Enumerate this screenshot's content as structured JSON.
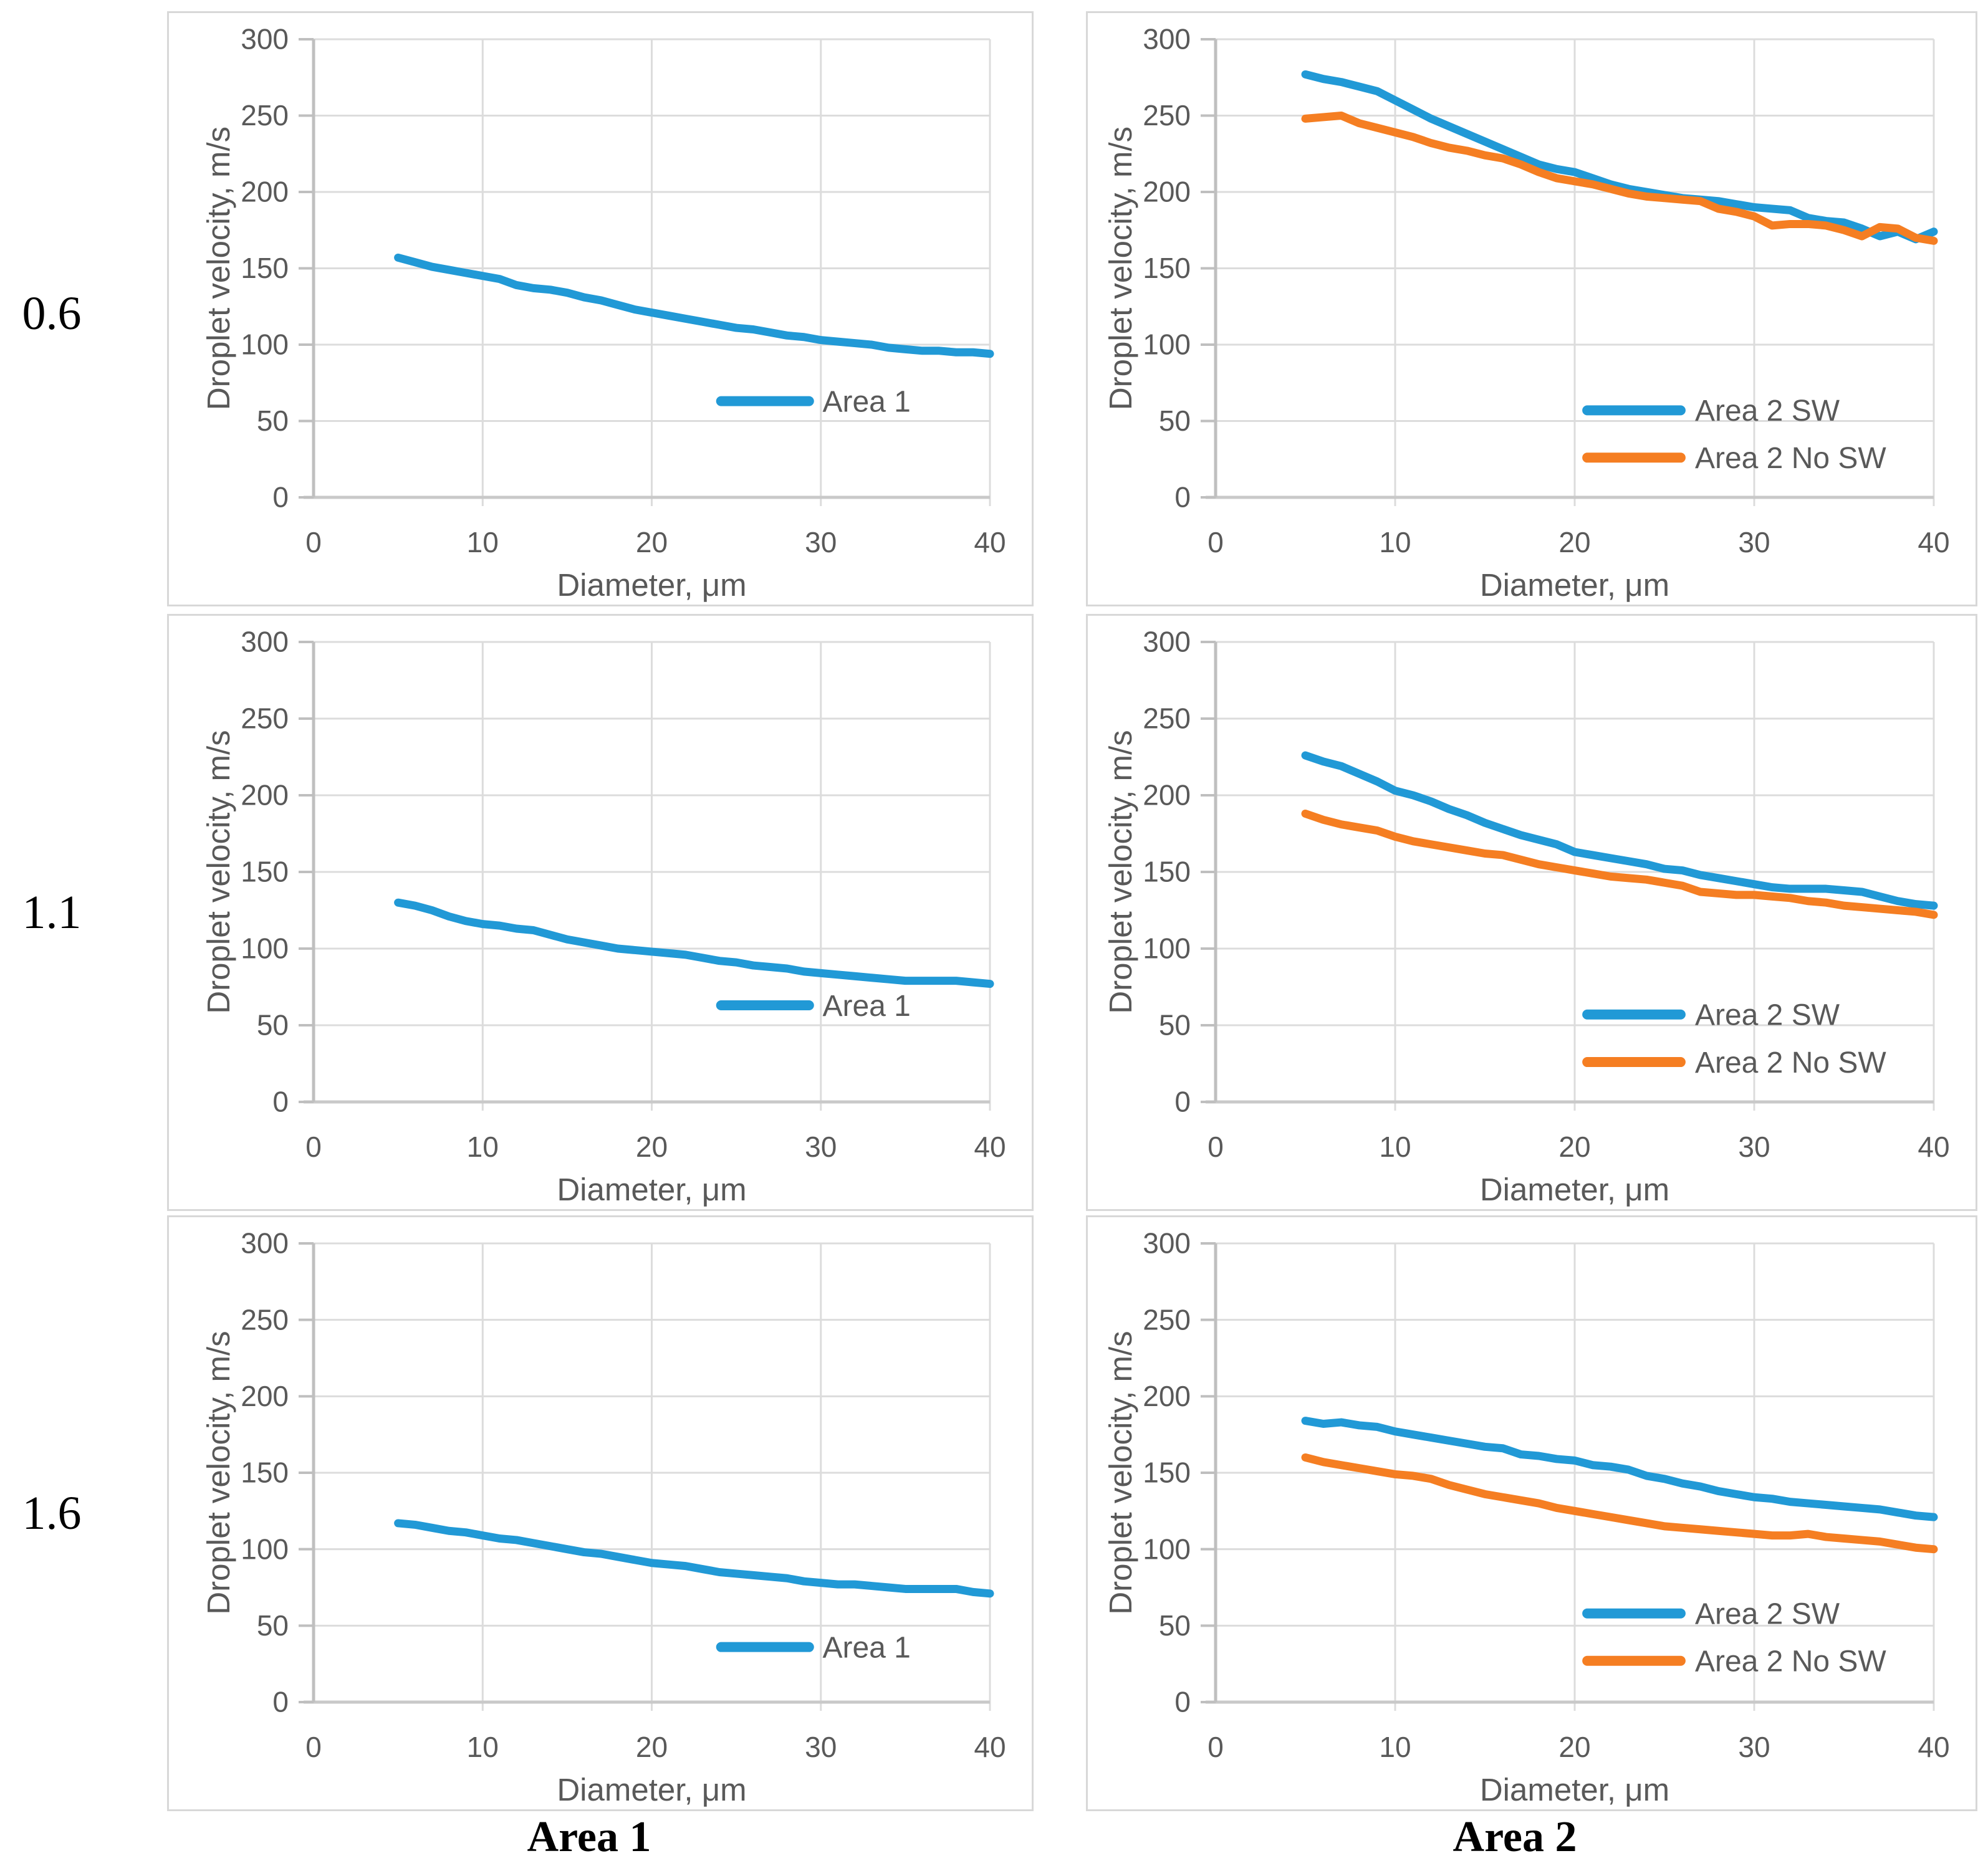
{
  "figure": {
    "row_labels": [
      {
        "label": "0.6"
      },
      {
        "label": "1.1"
      },
      {
        "label": "1.6"
      }
    ],
    "column_captions": [
      {
        "label": "Area 1"
      },
      {
        "label": "Area 2"
      }
    ]
  },
  "colors": {
    "blue": "#2199d6",
    "orange": "#f57e22",
    "grid": "#dcdcdc",
    "axis": "#bfbfbf",
    "axis_bottom": "#c9c9c9",
    "text": "#595959",
    "panel_border": "#d8d8d8"
  },
  "chart_data": [
    {
      "id": "r1-area1",
      "row": 0,
      "col": 0,
      "type": "line",
      "xlabel": "Diameter, μm",
      "ylabel": "Droplet velocity, m/s",
      "xlim": [
        0,
        40
      ],
      "ylim": [
        0,
        300
      ],
      "xticks": [
        0,
        10,
        20,
        30,
        40
      ],
      "yticks": [
        0,
        50,
        100,
        150,
        200,
        250,
        300
      ],
      "grid": true,
      "legend": {
        "position": "inside-lower-right",
        "entries": [
          {
            "label": "Area 1",
            "color": "blue",
            "x": 24.1,
            "y": 63
          }
        ]
      },
      "series": [
        {
          "name": "Area 1",
          "color": "blue",
          "x": [
            5,
            6,
            7,
            8,
            9,
            10,
            11,
            12,
            13,
            14,
            15,
            16,
            17,
            18,
            19,
            20,
            21,
            22,
            23,
            24,
            25,
            26,
            27,
            28,
            29,
            30,
            31,
            32,
            33,
            34,
            35,
            36,
            37,
            38,
            39,
            40
          ],
          "y": [
            157,
            154,
            151,
            149,
            147,
            145,
            143,
            139,
            137,
            136,
            134,
            131,
            129,
            126,
            123,
            121,
            119,
            117,
            115,
            113,
            111,
            110,
            108,
            106,
            105,
            103,
            102,
            101,
            100,
            98,
            97,
            96,
            96,
            95,
            95,
            94
          ]
        }
      ]
    },
    {
      "id": "r1-area2",
      "row": 0,
      "col": 1,
      "type": "line",
      "xlabel": "Diameter, μm",
      "ylabel": "Droplet velocity, m/s",
      "xlim": [
        0,
        40
      ],
      "ylim": [
        0,
        300
      ],
      "xticks": [
        0,
        10,
        20,
        30,
        40
      ],
      "yticks": [
        0,
        50,
        100,
        150,
        200,
        250,
        300
      ],
      "grid": true,
      "legend": {
        "position": "inside-lower-right",
        "entries": [
          {
            "label": "Area 2 SW",
            "color": "blue",
            "x": 20.7,
            "y": 57
          },
          {
            "label": "Area 2 No SW",
            "color": "orange",
            "x": 20.7,
            "y": 26
          }
        ]
      },
      "series": [
        {
          "name": "Area 2 SW",
          "color": "blue",
          "x": [
            5,
            6,
            7,
            8,
            9,
            10,
            11,
            12,
            13,
            14,
            15,
            16,
            17,
            18,
            19,
            20,
            21,
            22,
            23,
            24,
            25,
            26,
            27,
            28,
            29,
            30,
            31,
            32,
            33,
            34,
            35,
            36,
            37,
            38,
            39,
            40
          ],
          "y": [
            277,
            274,
            272,
            269,
            266,
            260,
            254,
            248,
            243,
            238,
            233,
            228,
            223,
            218,
            215,
            213,
            209,
            205,
            202,
            200,
            198,
            196,
            195,
            194,
            192,
            190,
            189,
            188,
            183,
            181,
            180,
            176,
            171,
            174,
            169,
            174
          ]
        },
        {
          "name": "Area 2 No SW",
          "color": "orange",
          "x": [
            5,
            6,
            7,
            8,
            9,
            10,
            11,
            12,
            13,
            14,
            15,
            16,
            17,
            18,
            19,
            20,
            21,
            22,
            23,
            24,
            25,
            26,
            27,
            28,
            29,
            30,
            31,
            32,
            33,
            34,
            35,
            36,
            37,
            38,
            39,
            40
          ],
          "y": [
            248,
            249,
            250,
            245,
            242,
            239,
            236,
            232,
            229,
            227,
            224,
            222,
            218,
            213,
            209,
            207,
            205,
            202,
            199,
            197,
            196,
            195,
            194,
            189,
            187,
            184,
            178,
            179,
            179,
            178,
            175,
            171,
            177,
            176,
            170,
            168
          ]
        }
      ]
    },
    {
      "id": "r2-area1",
      "row": 1,
      "col": 0,
      "type": "line",
      "xlabel": "Diameter, μm",
      "ylabel": "Droplet velocity, m/s",
      "xlim": [
        0,
        40
      ],
      "ylim": [
        0,
        300
      ],
      "xticks": [
        0,
        10,
        20,
        30,
        40
      ],
      "yticks": [
        0,
        50,
        100,
        150,
        200,
        250,
        300
      ],
      "grid": true,
      "legend": {
        "position": "inside-lower-right",
        "entries": [
          {
            "label": "Area 1",
            "color": "blue",
            "x": 24.1,
            "y": 63
          }
        ]
      },
      "series": [
        {
          "name": "Area 1",
          "color": "blue",
          "x": [
            5,
            6,
            7,
            8,
            9,
            10,
            11,
            12,
            13,
            14,
            15,
            16,
            17,
            18,
            19,
            20,
            21,
            22,
            23,
            24,
            25,
            26,
            27,
            28,
            29,
            30,
            31,
            32,
            33,
            34,
            35,
            36,
            37,
            38,
            39,
            40
          ],
          "y": [
            130,
            128,
            125,
            121,
            118,
            116,
            115,
            113,
            112,
            109,
            106,
            104,
            102,
            100,
            99,
            98,
            97,
            96,
            94,
            92,
            91,
            89,
            88,
            87,
            85,
            84,
            83,
            82,
            81,
            80,
            79,
            79,
            79,
            79,
            78,
            77
          ]
        }
      ]
    },
    {
      "id": "r2-area2",
      "row": 1,
      "col": 1,
      "type": "line",
      "xlabel": "Diameter, μm",
      "ylabel": "Droplet velocity, m/s",
      "xlim": [
        0,
        40
      ],
      "ylim": [
        0,
        300
      ],
      "xticks": [
        0,
        10,
        20,
        30,
        40
      ],
      "yticks": [
        0,
        50,
        100,
        150,
        200,
        250,
        300
      ],
      "grid": true,
      "legend": {
        "position": "inside-lower-right",
        "entries": [
          {
            "label": "Area 2 SW",
            "color": "blue",
            "x": 20.7,
            "y": 57
          },
          {
            "label": "Area 2 No SW",
            "color": "orange",
            "x": 20.7,
            "y": 26
          }
        ]
      },
      "series": [
        {
          "name": "Area 2 SW",
          "color": "blue",
          "x": [
            5,
            6,
            7,
            8,
            9,
            10,
            11,
            12,
            13,
            14,
            15,
            16,
            17,
            18,
            19,
            20,
            21,
            22,
            23,
            24,
            25,
            26,
            27,
            28,
            29,
            30,
            31,
            32,
            33,
            34,
            35,
            36,
            37,
            38,
            39,
            40
          ],
          "y": [
            226,
            222,
            219,
            214,
            209,
            203,
            200,
            196,
            191,
            187,
            182,
            178,
            174,
            171,
            168,
            163,
            161,
            159,
            157,
            155,
            152,
            151,
            148,
            146,
            144,
            142,
            140,
            139,
            139,
            139,
            138,
            137,
            134,
            131,
            129,
            128
          ]
        },
        {
          "name": "Area 2 No SW",
          "color": "orange",
          "x": [
            5,
            6,
            7,
            8,
            9,
            10,
            11,
            12,
            13,
            14,
            15,
            16,
            17,
            18,
            19,
            20,
            21,
            22,
            23,
            24,
            25,
            26,
            27,
            28,
            29,
            30,
            31,
            32,
            33,
            34,
            35,
            36,
            37,
            38,
            39,
            40
          ],
          "y": [
            188,
            184,
            181,
            179,
            177,
            173,
            170,
            168,
            166,
            164,
            162,
            161,
            158,
            155,
            153,
            151,
            149,
            147,
            146,
            145,
            143,
            141,
            137,
            136,
            135,
            135,
            134,
            133,
            131,
            130,
            128,
            127,
            126,
            125,
            124,
            122
          ]
        }
      ]
    },
    {
      "id": "r3-area1",
      "row": 2,
      "col": 0,
      "type": "line",
      "xlabel": "Diameter, μm",
      "ylabel": "Droplet velocity, m/s",
      "xlim": [
        0,
        40
      ],
      "ylim": [
        0,
        300
      ],
      "xticks": [
        0,
        10,
        20,
        30,
        40
      ],
      "yticks": [
        0,
        50,
        100,
        150,
        200,
        250,
        300
      ],
      "grid": true,
      "legend": {
        "position": "inside-lower-right",
        "entries": [
          {
            "label": "Area 1",
            "color": "blue",
            "x": 24.1,
            "y": 36
          }
        ]
      },
      "series": [
        {
          "name": "Area 1",
          "color": "blue",
          "x": [
            5,
            6,
            7,
            8,
            9,
            10,
            11,
            12,
            13,
            14,
            15,
            16,
            17,
            18,
            19,
            20,
            21,
            22,
            23,
            24,
            25,
            26,
            27,
            28,
            29,
            30,
            31,
            32,
            33,
            34,
            35,
            36,
            37,
            38,
            39,
            40
          ],
          "y": [
            117,
            116,
            114,
            112,
            111,
            109,
            107,
            106,
            104,
            102,
            100,
            98,
            97,
            95,
            93,
            91,
            90,
            89,
            87,
            85,
            84,
            83,
            82,
            81,
            79,
            78,
            77,
            77,
            76,
            75,
            74,
            74,
            74,
            74,
            72,
            71
          ]
        }
      ]
    },
    {
      "id": "r3-area2",
      "row": 2,
      "col": 1,
      "type": "line",
      "xlabel": "Diameter, μm",
      "ylabel": "Droplet velocity, m/s",
      "xlim": [
        0,
        40
      ],
      "ylim": [
        0,
        300
      ],
      "xticks": [
        0,
        10,
        20,
        30,
        40
      ],
      "yticks": [
        0,
        50,
        100,
        150,
        200,
        250,
        300
      ],
      "grid": true,
      "legend": {
        "position": "inside-lower-right",
        "entries": [
          {
            "label": "Area 2 SW",
            "color": "blue",
            "x": 20.7,
            "y": 58
          },
          {
            "label": "Area 2 No SW",
            "color": "orange",
            "x": 20.7,
            "y": 27
          }
        ]
      },
      "series": [
        {
          "name": "Area 2 SW",
          "color": "blue",
          "x": [
            5,
            6,
            7,
            8,
            9,
            10,
            11,
            12,
            13,
            14,
            15,
            16,
            17,
            18,
            19,
            20,
            21,
            22,
            23,
            24,
            25,
            26,
            27,
            28,
            29,
            30,
            31,
            32,
            33,
            34,
            35,
            36,
            37,
            38,
            39,
            40
          ],
          "y": [
            184,
            182,
            183,
            181,
            180,
            177,
            175,
            173,
            171,
            169,
            167,
            166,
            162,
            161,
            159,
            158,
            155,
            154,
            152,
            148,
            146,
            143,
            141,
            138,
            136,
            134,
            133,
            131,
            130,
            129,
            128,
            127,
            126,
            124,
            122,
            121
          ]
        },
        {
          "name": "Area 2 No SW",
          "color": "orange",
          "x": [
            5,
            6,
            7,
            8,
            9,
            10,
            11,
            12,
            13,
            14,
            15,
            16,
            17,
            18,
            19,
            20,
            21,
            22,
            23,
            24,
            25,
            26,
            27,
            28,
            29,
            30,
            31,
            32,
            33,
            34,
            35,
            36,
            37,
            38,
            39,
            40
          ],
          "y": [
            160,
            157,
            155,
            153,
            151,
            149,
            148,
            146,
            142,
            139,
            136,
            134,
            132,
            130,
            127,
            125,
            123,
            121,
            119,
            117,
            115,
            114,
            113,
            112,
            111,
            110,
            109,
            109,
            110,
            108,
            107,
            106,
            105,
            103,
            101,
            100
          ]
        }
      ]
    }
  ]
}
